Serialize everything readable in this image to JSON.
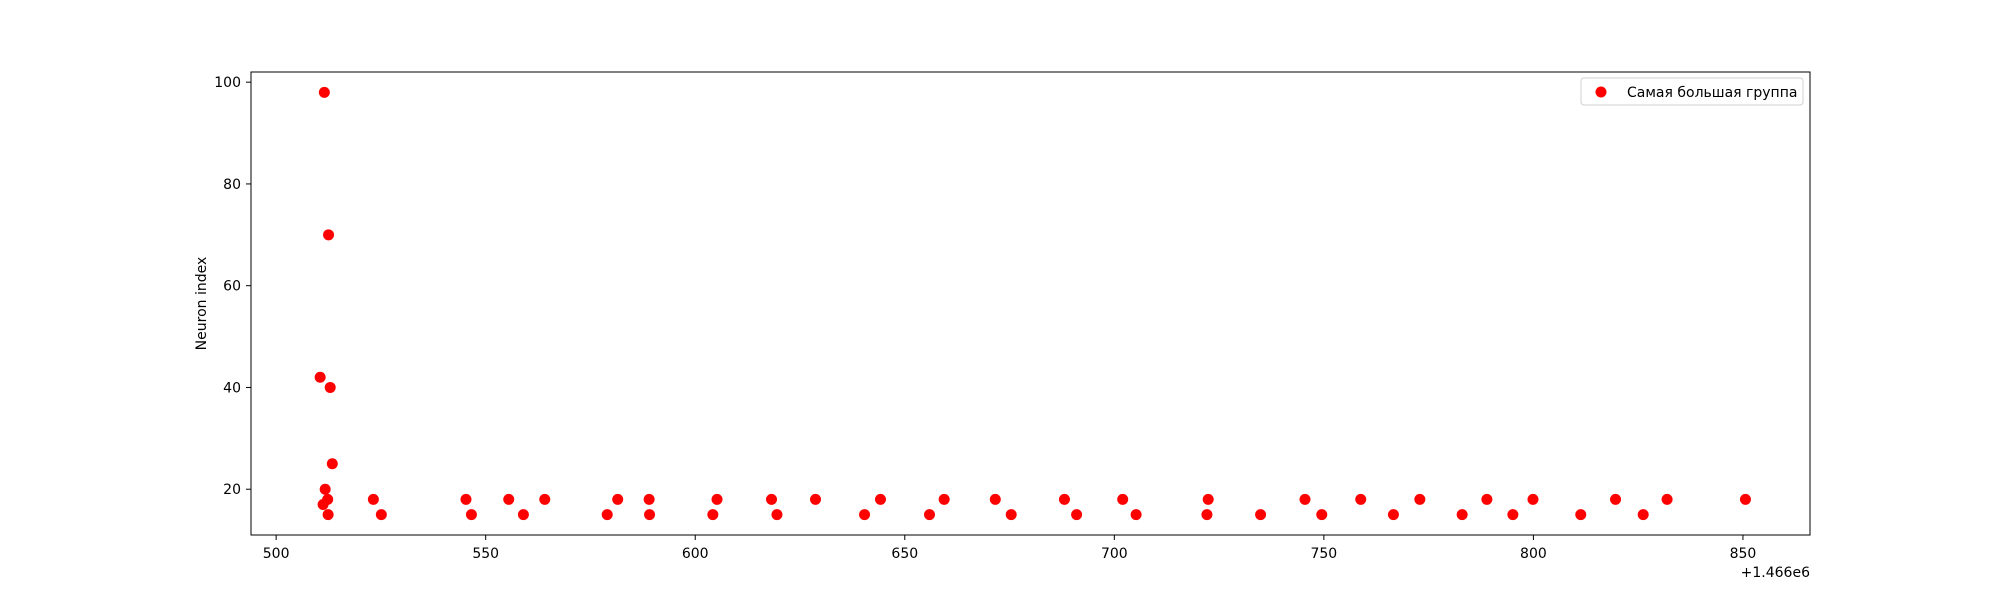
{
  "chart_data": {
    "type": "scatter",
    "title": "",
    "xlabel": "",
    "ylabel": "Neuron index",
    "x_offset_label": "+1.466e6",
    "xlim": [
      494,
      866
    ],
    "ylim": [
      11,
      102
    ],
    "xticks": [
      500,
      550,
      600,
      650,
      700,
      750,
      800,
      850
    ],
    "yticks": [
      20,
      40,
      60,
      80,
      100
    ],
    "grid": false,
    "legend_position": "top-right",
    "series": [
      {
        "name": "Самая большая группа",
        "color": "#ff0000",
        "points": [
          {
            "x": 510.5,
            "y": 42
          },
          {
            "x": 511.2,
            "y": 17
          },
          {
            "x": 511.5,
            "y": 98
          },
          {
            "x": 511.7,
            "y": 20
          },
          {
            "x": 512.3,
            "y": 18
          },
          {
            "x": 512.4,
            "y": 15
          },
          {
            "x": 512.5,
            "y": 70
          },
          {
            "x": 512.9,
            "y": 40
          },
          {
            "x": 513.4,
            "y": 25
          },
          {
            "x": 523.2,
            "y": 18
          },
          {
            "x": 525.1,
            "y": 15
          },
          {
            "x": 545.3,
            "y": 18
          },
          {
            "x": 546.6,
            "y": 15
          },
          {
            "x": 555.5,
            "y": 18
          },
          {
            "x": 559.0,
            "y": 15
          },
          {
            "x": 564.1,
            "y": 18
          },
          {
            "x": 579.0,
            "y": 15
          },
          {
            "x": 581.5,
            "y": 18
          },
          {
            "x": 589.0,
            "y": 18
          },
          {
            "x": 589.1,
            "y": 15
          },
          {
            "x": 604.2,
            "y": 15
          },
          {
            "x": 605.2,
            "y": 18
          },
          {
            "x": 618.2,
            "y": 18
          },
          {
            "x": 619.5,
            "y": 15
          },
          {
            "x": 628.7,
            "y": 18
          },
          {
            "x": 640.4,
            "y": 15
          },
          {
            "x": 644.2,
            "y": 18
          },
          {
            "x": 655.9,
            "y": 15
          },
          {
            "x": 659.4,
            "y": 18
          },
          {
            "x": 671.6,
            "y": 18
          },
          {
            "x": 675.4,
            "y": 15
          },
          {
            "x": 688.1,
            "y": 18
          },
          {
            "x": 691.0,
            "y": 15
          },
          {
            "x": 702.0,
            "y": 18
          },
          {
            "x": 705.2,
            "y": 15
          },
          {
            "x": 722.1,
            "y": 15
          },
          {
            "x": 722.4,
            "y": 18
          },
          {
            "x": 734.9,
            "y": 15
          },
          {
            "x": 745.5,
            "y": 18
          },
          {
            "x": 749.5,
            "y": 15
          },
          {
            "x": 758.8,
            "y": 18
          },
          {
            "x": 766.6,
            "y": 15
          },
          {
            "x": 772.9,
            "y": 18
          },
          {
            "x": 783.0,
            "y": 15
          },
          {
            "x": 788.9,
            "y": 18
          },
          {
            "x": 795.1,
            "y": 15
          },
          {
            "x": 799.9,
            "y": 18
          },
          {
            "x": 811.3,
            "y": 15
          },
          {
            "x": 819.6,
            "y": 18
          },
          {
            "x": 826.2,
            "y": 15
          },
          {
            "x": 831.9,
            "y": 18
          },
          {
            "x": 850.6,
            "y": 18
          }
        ]
      }
    ]
  }
}
